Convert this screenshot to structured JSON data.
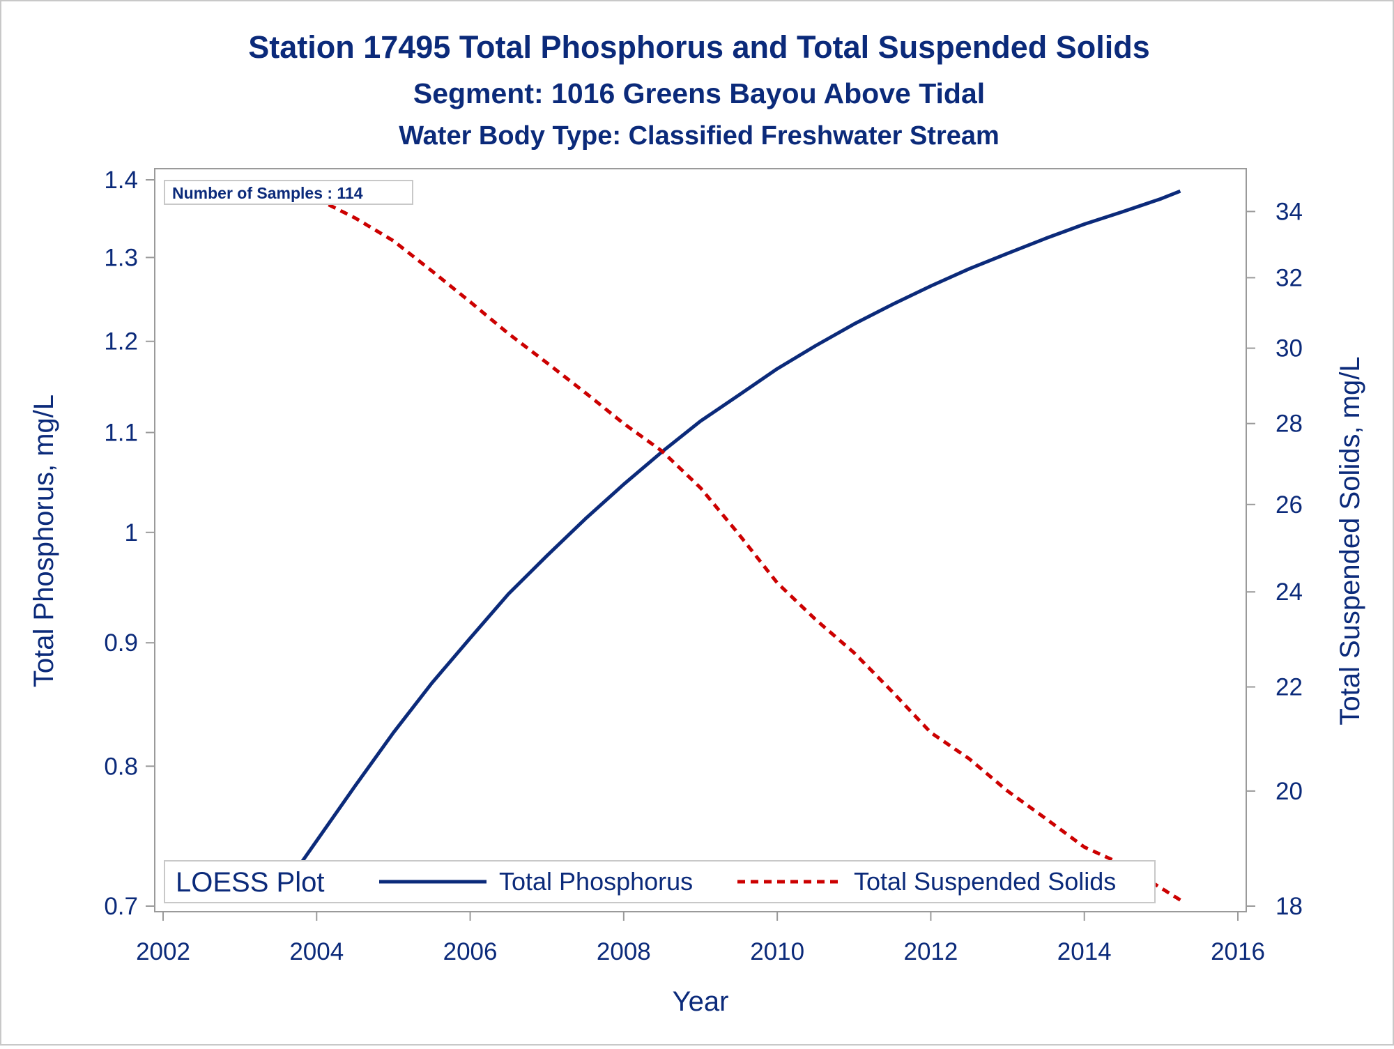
{
  "chart_data": {
    "type": "line",
    "title": "Station 17495  Total Phosphorus and Total Suspended Solids",
    "subtitle": "Segment: 1016  Greens Bayou Above Tidal",
    "subtitle2": "Water Body Type: Classified Freshwater Stream",
    "xlabel": "Year",
    "ylabel": "Total Phosphorus, mg/L",
    "y2label": "Total Suspended Solids, mg/L",
    "xlim": [
      2002,
      2016
    ],
    "ylim": [
      0.7,
      1.4
    ],
    "y2lim": [
      18,
      35
    ],
    "xticks": [
      2002,
      2004,
      2006,
      2008,
      2010,
      2012,
      2014,
      2016
    ],
    "xtick_labels": [
      "2002",
      "2004",
      "2006",
      "2008",
      "2010",
      "2012",
      "2014",
      "2016"
    ],
    "yticks": [
      0.7,
      0.8,
      0.9,
      1.0,
      1.1,
      1.2,
      1.3,
      1.4
    ],
    "ytick_labels": [
      "0.7",
      "0.8",
      "0.9",
      "1",
      "1.1",
      "1.2",
      "1.3",
      "1.4"
    ],
    "y2ticks": [
      18,
      20,
      22,
      24,
      26,
      28,
      30,
      32,
      34
    ],
    "y2tick_labels": [
      "18",
      "20",
      "22",
      "24",
      "26",
      "28",
      "30",
      "32",
      "34"
    ],
    "y_scale": "log",
    "y2_scale": "log",
    "annotation": "Number of Samples : 114",
    "legend": {
      "title": "LOESS Plot",
      "placement": "bottom",
      "entries": [
        "Total Phosphorus",
        "Total Suspended Solids"
      ]
    },
    "series": [
      {
        "name": "Total Phosphorus",
        "axis": "left",
        "color": "#0b2a7a",
        "style": "solid",
        "x": [
          2003.7,
          2004.0,
          2004.5,
          2005.0,
          2005.5,
          2006.0,
          2006.5,
          2007.0,
          2007.5,
          2008.0,
          2008.5,
          2009.0,
          2009.5,
          2010.0,
          2010.5,
          2011.0,
          2011.5,
          2012.0,
          2012.5,
          2013.0,
          2013.5,
          2014.0,
          2014.5,
          2015.0,
          2015.25
        ],
        "values": [
          0.722,
          0.745,
          0.785,
          0.826,
          0.866,
          0.904,
          0.943,
          0.978,
          1.013,
          1.047,
          1.08,
          1.112,
          1.14,
          1.169,
          1.195,
          1.22,
          1.243,
          1.265,
          1.286,
          1.305,
          1.324,
          1.342,
          1.358,
          1.375,
          1.385
        ]
      },
      {
        "name": "Total Suspended Solids",
        "axis": "right",
        "color": "#cc0000",
        "style": "dashed",
        "x": [
          2003.7,
          2004.0,
          2004.5,
          2005.0,
          2005.5,
          2006.0,
          2006.5,
          2007.0,
          2007.5,
          2008.0,
          2008.5,
          2009.0,
          2009.5,
          2010.0,
          2010.5,
          2011.0,
          2011.5,
          2012.0,
          2012.5,
          2013.0,
          2013.5,
          2014.0,
          2014.5,
          2015.0,
          2015.25
        ],
        "values": [
          34.8,
          34.4,
          33.8,
          33.1,
          32.2,
          31.3,
          30.4,
          29.6,
          28.8,
          28.0,
          27.3,
          26.4,
          25.3,
          24.2,
          23.4,
          22.7,
          21.9,
          21.1,
          20.6,
          20.0,
          19.5,
          19.0,
          18.7,
          18.3,
          18.1
        ]
      }
    ]
  }
}
